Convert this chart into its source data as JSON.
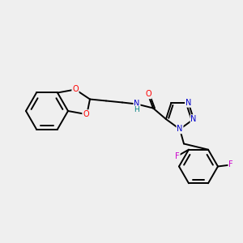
{
  "background_color": "#efefef",
  "bond_color": "#000000",
  "atom_colors": {
    "N": "#0000cc",
    "O": "#ff0000",
    "F": "#cc00cc",
    "H": "#008080"
  },
  "lw": 1.4,
  "fs": 7.0
}
